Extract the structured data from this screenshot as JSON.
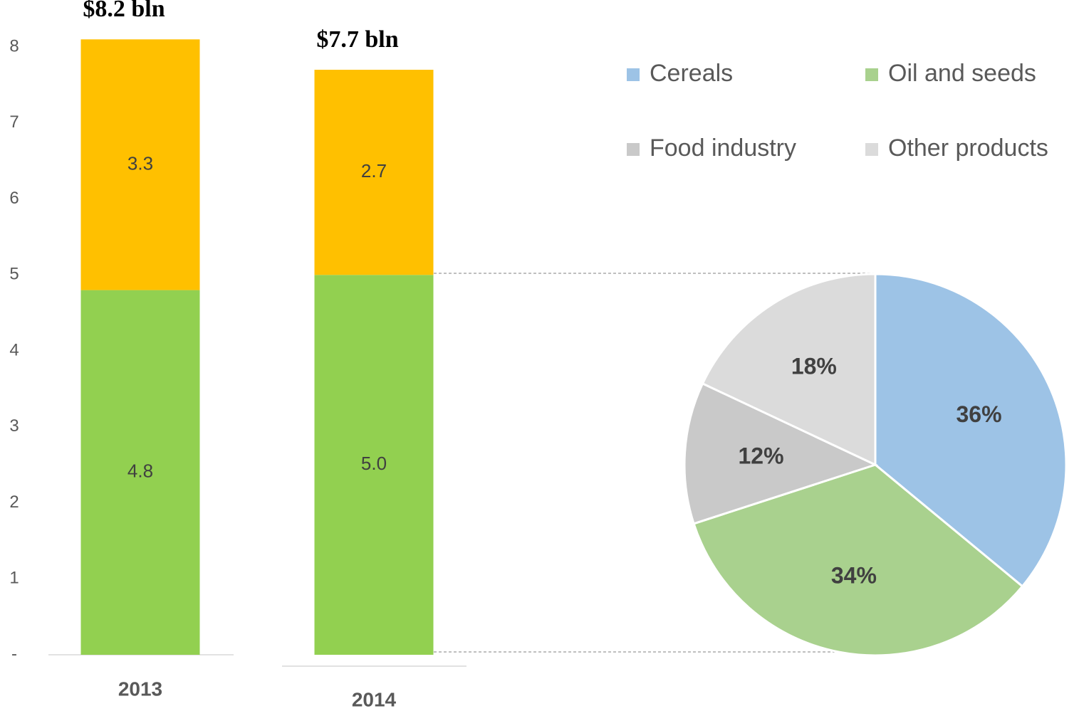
{
  "chart_data": [
    {
      "type": "bar",
      "stacked": true,
      "categories": [
        "2013",
        "2014"
      ],
      "series": [
        {
          "color": "#92d050",
          "values": [
            4.8,
            5.0
          ],
          "value_labels": [
            "4.8",
            "5.0"
          ]
        },
        {
          "color": "#ffc000",
          "values": [
            3.3,
            2.7
          ],
          "value_labels": [
            "3.3",
            "2.7"
          ]
        }
      ],
      "annotations": [
        "$8.2 bln",
        "$7.7 bln"
      ],
      "ylim": [
        0,
        8
      ],
      "yticks": [
        {
          "value": 0,
          "label": "-"
        },
        1,
        2,
        3,
        4,
        5,
        6,
        7,
        8
      ]
    },
    {
      "type": "pie",
      "categories": [
        "Cereals",
        "Oil and seeds",
        "Food industry",
        "Other products"
      ],
      "values": [
        36,
        34,
        12,
        18
      ],
      "value_labels": [
        "36%",
        "34%",
        "12%",
        "18%"
      ],
      "colors": [
        "#9dc3e6",
        "#a9d18e",
        "#c9c9c9",
        "#dbdbdb"
      ]
    }
  ]
}
